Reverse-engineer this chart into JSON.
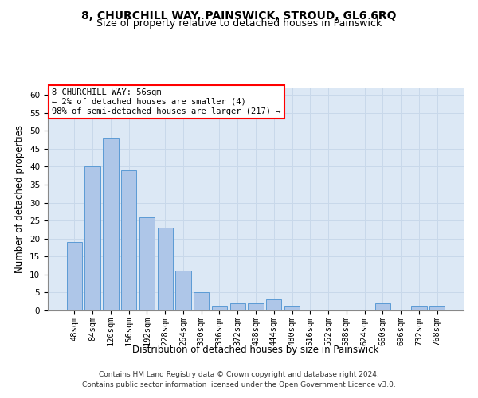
{
  "title": "8, CHURCHILL WAY, PAINSWICK, STROUD, GL6 6RQ",
  "subtitle": "Size of property relative to detached houses in Painswick",
  "xlabel": "Distribution of detached houses by size in Painswick",
  "ylabel": "Number of detached properties",
  "categories": [
    "48sqm",
    "84sqm",
    "120sqm",
    "156sqm",
    "192sqm",
    "228sqm",
    "264sqm",
    "300sqm",
    "336sqm",
    "372sqm",
    "408sqm",
    "444sqm",
    "480sqm",
    "516sqm",
    "552sqm",
    "588sqm",
    "624sqm",
    "660sqm",
    "696sqm",
    "732sqm",
    "768sqm"
  ],
  "values": [
    19,
    40,
    48,
    39,
    26,
    23,
    11,
    5,
    1,
    2,
    2,
    3,
    1,
    0,
    0,
    0,
    0,
    2,
    0,
    1,
    1
  ],
  "bar_color": "#aec6e8",
  "bar_edge_color": "#5b9bd5",
  "annotation_box_text": "8 CHURCHILL WAY: 56sqm\n← 2% of detached houses are smaller (4)\n98% of semi-detached houses are larger (217) →",
  "ylim": [
    0,
    62
  ],
  "yticks": [
    0,
    5,
    10,
    15,
    20,
    25,
    30,
    35,
    40,
    45,
    50,
    55,
    60
  ],
  "grid_color": "#c8d8ea",
  "background_color": "#dce8f5",
  "footer_line1": "Contains HM Land Registry data © Crown copyright and database right 2024.",
  "footer_line2": "Contains public sector information licensed under the Open Government Licence v3.0.",
  "title_fontsize": 10,
  "subtitle_fontsize": 9,
  "axis_label_fontsize": 8.5,
  "tick_fontsize": 7.5,
  "annotation_fontsize": 7.5,
  "footer_fontsize": 6.5
}
